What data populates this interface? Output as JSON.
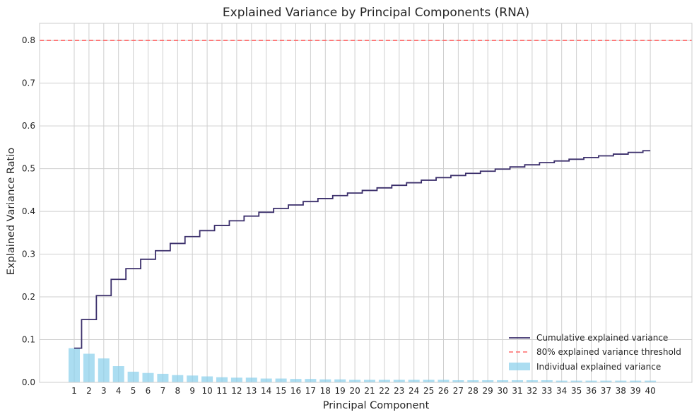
{
  "chart_data": {
    "type": "bar",
    "title": "Explained Variance by Principal Components (RNA)",
    "xlabel": "Principal Component",
    "ylabel": "Explained Variance Ratio",
    "ylim": [
      0,
      0.84
    ],
    "yticks": [
      "0.0",
      "0.1",
      "0.2",
      "0.3",
      "0.4",
      "0.5",
      "0.6",
      "0.7",
      "0.8"
    ],
    "grid": true,
    "legend_position": "bottom-right",
    "categories": [
      "1",
      "2",
      "3",
      "4",
      "5",
      "6",
      "7",
      "8",
      "9",
      "10",
      "11",
      "12",
      "13",
      "14",
      "15",
      "16",
      "17",
      "18",
      "19",
      "20",
      "21",
      "22",
      "23",
      "24",
      "25",
      "26",
      "27",
      "28",
      "29",
      "30",
      "31",
      "32",
      "33",
      "34",
      "35",
      "36",
      "37",
      "38",
      "39",
      "40"
    ],
    "series": [
      {
        "name": "Individual explained variance",
        "type": "bar",
        "color": "#87ceeb",
        "values": [
          0.08,
          0.067,
          0.056,
          0.038,
          0.025,
          0.022,
          0.02,
          0.017,
          0.016,
          0.014,
          0.012,
          0.011,
          0.011,
          0.009,
          0.009,
          0.008,
          0.008,
          0.007,
          0.007,
          0.006,
          0.006,
          0.006,
          0.006,
          0.006,
          0.006,
          0.006,
          0.005,
          0.005,
          0.005,
          0.005,
          0.005,
          0.005,
          0.005,
          0.004,
          0.004,
          0.004,
          0.004,
          0.004,
          0.004,
          0.004
        ]
      },
      {
        "name": "Cumulative explained variance",
        "type": "step",
        "color": "#3b2f6b",
        "values": [
          0.08,
          0.147,
          0.203,
          0.241,
          0.266,
          0.288,
          0.308,
          0.325,
          0.341,
          0.355,
          0.367,
          0.378,
          0.389,
          0.398,
          0.407,
          0.415,
          0.423,
          0.43,
          0.437,
          0.443,
          0.449,
          0.455,
          0.461,
          0.467,
          0.473,
          0.479,
          0.484,
          0.489,
          0.494,
          0.499,
          0.504,
          0.509,
          0.514,
          0.518,
          0.522,
          0.526,
          0.53,
          0.534,
          0.538,
          0.542
        ]
      }
    ],
    "threshold": {
      "name": "80% explained variance threshold",
      "value": 0.8,
      "color": "#ff6b6b"
    }
  }
}
